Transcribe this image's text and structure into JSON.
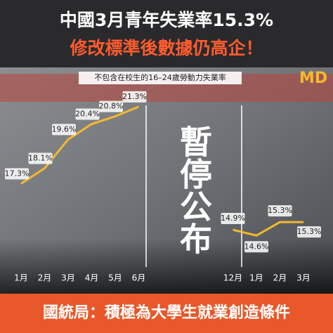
{
  "chart_data": {
    "type": "line",
    "title": "中國3月青年失業率15.3%",
    "subtitle": "修改標準後數據仍高企！",
    "caption": "不包含在校生的16–24歲勞動力失業率",
    "logo": "MD",
    "annotation": "暫停公布",
    "footer": "國統局：積極為大學生就業創造條件",
    "categories": [
      "1月",
      "2月",
      "3月",
      "4月",
      "5月",
      "6月",
      null,
      null,
      null,
      "12月",
      "1月",
      "2月",
      "3月"
    ],
    "series": [
      {
        "color": "#f5b82e",
        "values": [
          17.3,
          18.1,
          19.6,
          20.4,
          20.8,
          21.3,
          null,
          null,
          null,
          14.9,
          14.6,
          15.3,
          15.3
        ],
        "value_labels": [
          "17.3%",
          "18.1%",
          "19.6%",
          "20.4%",
          "20.8%",
          "21.3%",
          null,
          null,
          null,
          "14.9%",
          "14.6%",
          "15.3%",
          "15.3%"
        ]
      }
    ],
    "ylim": [
      12.6,
      22.1
    ]
  }
}
